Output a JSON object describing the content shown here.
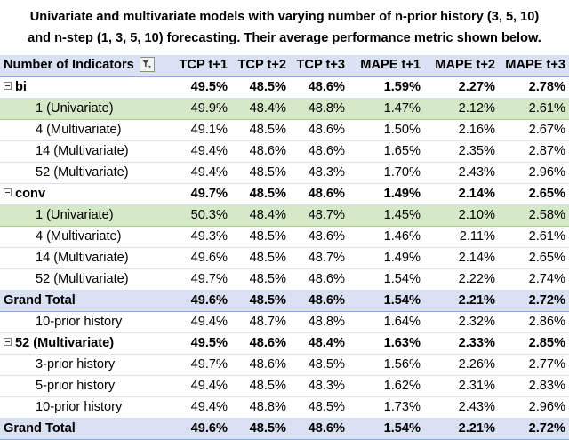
{
  "title_lines": [
    "Univariate and multivariate models with varying number of n-prior history (3, 5, 10)",
    "and n-step (1, 3, 5, 10) forecasting. Their average performance metric shown below."
  ],
  "table": {
    "headers": [
      "Number of Indicators",
      "TCP t+1",
      "TCP t+2",
      "TCP t+3",
      "MAPE t+1",
      "MAPE t+2",
      "MAPE t+3"
    ],
    "rows": [
      {
        "label": "bi",
        "cells": [
          "49.5%",
          "48.5%",
          "48.6%",
          "1.59%",
          "2.27%",
          "2.78%"
        ]
      },
      {
        "label": "1 (Univariate)",
        "cells": [
          "49.9%",
          "48.4%",
          "48.8%",
          "1.47%",
          "2.12%",
          "2.61%"
        ]
      },
      {
        "label": "4 (Multivariate)",
        "cells": [
          "49.1%",
          "48.5%",
          "48.6%",
          "1.50%",
          "2.16%",
          "2.67%"
        ]
      },
      {
        "label": "14 (Multivariate)",
        "cells": [
          "49.4%",
          "48.6%",
          "48.6%",
          "1.65%",
          "2.35%",
          "2.87%"
        ]
      },
      {
        "label": "52 (Multivariate)",
        "cells": [
          "49.4%",
          "48.5%",
          "48.3%",
          "1.70%",
          "2.43%",
          "2.96%"
        ]
      },
      {
        "label": "conv",
        "cells": [
          "49.7%",
          "48.5%",
          "48.6%",
          "1.49%",
          "2.14%",
          "2.65%"
        ]
      },
      {
        "label": "1 (Univariate)",
        "cells": [
          "50.3%",
          "48.4%",
          "48.7%",
          "1.45%",
          "2.10%",
          "2.58%"
        ]
      },
      {
        "label": "4 (Multivariate)",
        "cells": [
          "49.3%",
          "48.5%",
          "48.6%",
          "1.46%",
          "2.11%",
          "2.61%"
        ]
      },
      {
        "label": "14 (Multivariate)",
        "cells": [
          "49.6%",
          "48.5%",
          "48.7%",
          "1.49%",
          "2.14%",
          "2.65%"
        ]
      },
      {
        "label": "52 (Multivariate)",
        "cells": [
          "49.7%",
          "48.5%",
          "48.6%",
          "1.54%",
          "2.22%",
          "2.74%"
        ]
      },
      {
        "label": "Grand Total",
        "cells": [
          "49.6%",
          "48.5%",
          "48.6%",
          "1.54%",
          "2.21%",
          "2.72%"
        ]
      },
      {
        "label": "10-prior history",
        "cells": [
          "49.4%",
          "48.7%",
          "48.8%",
          "1.64%",
          "2.32%",
          "2.86%"
        ]
      },
      {
        "label": "52 (Multivariate)",
        "cells": [
          "49.5%",
          "48.6%",
          "48.4%",
          "1.63%",
          "2.33%",
          "2.85%"
        ]
      },
      {
        "label": "3-prior history",
        "cells": [
          "49.7%",
          "48.6%",
          "48.5%",
          "1.56%",
          "2.26%",
          "2.77%"
        ]
      },
      {
        "label": "5-prior history",
        "cells": [
          "49.4%",
          "48.5%",
          "48.3%",
          "1.62%",
          "2.31%",
          "2.83%"
        ]
      },
      {
        "label": "10-prior history",
        "cells": [
          "49.4%",
          "48.8%",
          "48.5%",
          "1.73%",
          "2.43%",
          "2.96%"
        ]
      },
      {
        "label": "Grand Total",
        "cells": [
          "49.6%",
          "48.5%",
          "48.6%",
          "1.54%",
          "2.21%",
          "2.72%"
        ]
      }
    ]
  }
}
